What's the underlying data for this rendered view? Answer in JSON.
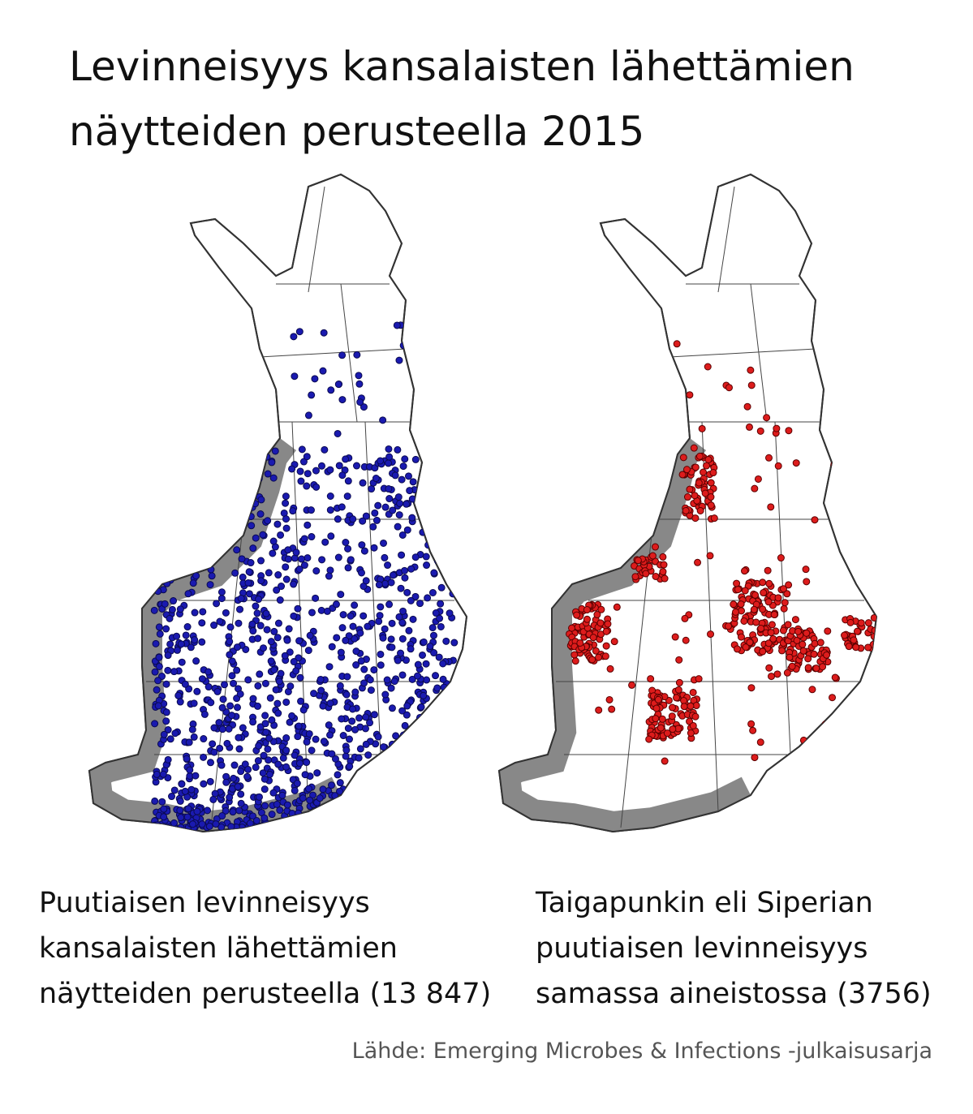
{
  "header": {
    "title_lines": [
      "Levinneisyys kansalaisten lähettämien",
      "näytteiden perusteella 2015"
    ]
  },
  "maps": [
    {
      "caption_lines": [
        "Puutiaisen levinneisyys",
        "kansalaisten lähettämien",
        "näytteiden perusteella (13 847)"
      ]
    },
    {
      "caption_lines": [
        "Taigapunkin eli Siperian",
        "puutiaisen levinneisyys",
        "samassa aineistossa (3756)"
      ]
    }
  ],
  "source": "Lähde: Emerging Microbes & Infections -julkaisusarja"
}
